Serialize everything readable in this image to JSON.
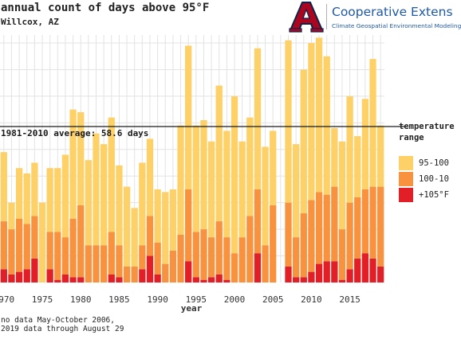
{
  "header": {
    "title": "annual count of days above 95°F",
    "subtitle": "Willcox, AZ"
  },
  "logo": {
    "name": "Cooperative Extens",
    "sub": "Climate Geospatial Environmental Modeling",
    "colors": {
      "letter": "#ab0520",
      "outline": "#0c234b",
      "text": "#1e5aa8"
    }
  },
  "legend": {
    "title_line1": "temperature",
    "title_line2": "range",
    "items": [
      {
        "label": "95-100",
        "color": "#fdd167"
      },
      {
        "label": "100-10",
        "color": "#f8923f"
      },
      {
        "label": "+105°F",
        "color": "#e21e26"
      }
    ]
  },
  "footnote": {
    "line1": "no data May-October 2006,",
    "line2": "2019 data through August 29"
  },
  "chart_data": {
    "type": "bar",
    "stacked": true,
    "xlabel": "year",
    "ylabel": "",
    "xlim": [
      1969.5,
      2019.5
    ],
    "ylim": [
      0,
      93
    ],
    "x_ticks": [
      1970,
      1975,
      1980,
      1985,
      1990,
      1995,
      2000,
      2005,
      2010,
      2015
    ],
    "grid": true,
    "average": {
      "value": 58.6,
      "label": "1981-2010 average: 58.6 days"
    },
    "years": [
      1970,
      1971,
      1972,
      1973,
      1974,
      1975,
      1976,
      1977,
      1978,
      1979,
      1980,
      1981,
      1982,
      1983,
      1984,
      1985,
      1986,
      1987,
      1988,
      1989,
      1990,
      1991,
      1992,
      1993,
      1994,
      1995,
      1996,
      1997,
      1998,
      1999,
      2000,
      2001,
      2002,
      2003,
      2004,
      2005,
      2006,
      2007,
      2008,
      2009,
      2010,
      2011,
      2012,
      2013,
      2014,
      2015,
      2016,
      2017,
      2018,
      2019
    ],
    "series": [
      {
        "name": "+105°F",
        "color": "#e21e26",
        "values": [
          5,
          3,
          4,
          5,
          9,
          0,
          5,
          1,
          3,
          2,
          2,
          0,
          0,
          0,
          3,
          2,
          0,
          0,
          5,
          10,
          3,
          0,
          0,
          0,
          8,
          2,
          1,
          2,
          3,
          1,
          0,
          0,
          0,
          11,
          0,
          0,
          null,
          6,
          2,
          2,
          4,
          7,
          8,
          8,
          1,
          5,
          9,
          11,
          9,
          6
        ]
      },
      {
        "name": "100-10",
        "color": "#f8923f",
        "values": [
          18,
          17,
          20,
          17,
          16,
          0,
          14,
          18,
          14,
          22,
          27,
          14,
          14,
          14,
          16,
          12,
          6,
          6,
          9,
          15,
          12,
          7,
          12,
          18,
          27,
          17,
          19,
          15,
          20,
          16,
          11,
          17,
          25,
          24,
          14,
          29,
          null,
          24,
          15,
          24,
          27,
          27,
          25,
          28,
          19,
          25,
          23,
          24,
          27,
          30
        ]
      },
      {
        "name": "95-100",
        "color": "#fdd167",
        "values": [
          26,
          10,
          19,
          19,
          20,
          30,
          24,
          24,
          31,
          41,
          35,
          32,
          42,
          38,
          43,
          30,
          30,
          22,
          31,
          29,
          20,
          27,
          23,
          41,
          54,
          40,
          41,
          36,
          51,
          40,
          59,
          36,
          37,
          53,
          37,
          28,
          null,
          61,
          35,
          54,
          59,
          58,
          52,
          22,
          33,
          40,
          23,
          34,
          48,
          23
        ]
      }
    ]
  }
}
